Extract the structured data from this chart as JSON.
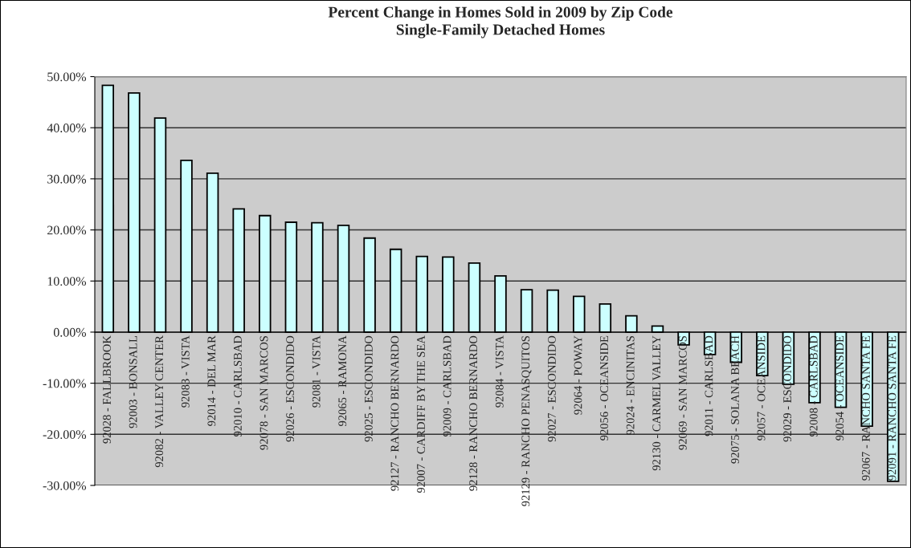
{
  "chart_data": {
    "type": "bar",
    "title": "Percent Change in Homes Sold in 2009 by Zip Code\nSingle-Family Detached Homes",
    "categories": [
      "92028 - FALLBROOK",
      "92003 - BONSALL",
      "92082 - VALLEY CENTER",
      "92083 - VISTA",
      "92014 - DEL MAR",
      "92010 - CARLSBAD",
      "92078 - SAN MARCOS",
      "92026 - ESCONDIDO",
      "92081 - VISTA",
      "92065 - RAMONA",
      "92025 - ESCONDIDO",
      "92127 - RANCHO BERNARDO",
      "92007 - CARDIFF BY THE SEA",
      "92009 - CARLSBAD",
      "92128 - RANCHO BERNARDO",
      "92084 - VISTA",
      "92129 - RANCHO PENASQUITOS",
      "92027 - ESCONDIDO",
      "92064 - POWAY",
      "92056 - OCEANSIDE",
      "92024 - ENCINITAS",
      "92130 - CARMEL VALLEY",
      "92069 - SAN MARCOS",
      "92011 - CARLSBAD",
      "92075 - SOLANA BEACH",
      "92057 - OCEANSIDE",
      "92029 - ESCONDIDO",
      "92008 - CARLSBAD",
      "92054 - OCEANSIDE",
      "92067 - RANCHO SANTA FE",
      "92091 - RANCHO SANTA FE"
    ],
    "values": [
      48.3,
      46.8,
      41.9,
      33.6,
      31.1,
      24.1,
      22.8,
      21.5,
      21.4,
      20.9,
      18.4,
      16.2,
      14.8,
      14.7,
      13.5,
      11.0,
      8.3,
      8.2,
      7.0,
      5.5,
      3.2,
      1.2,
      -2.5,
      -4.4,
      -5.9,
      -8.5,
      -10.2,
      -13.8,
      -14.7,
      -18.4,
      -29.2
    ],
    "color": "#ccffff",
    "ylim": [
      -30,
      50
    ],
    "yticks": [
      {
        "value": -30,
        "label": "-30.00%"
      },
      {
        "value": -20,
        "label": "-20.00%"
      },
      {
        "value": -10,
        "label": "-10.00%"
      },
      {
        "value": 0,
        "label": "0.00%"
      },
      {
        "value": 10,
        "label": "10.00%"
      },
      {
        "value": 20,
        "label": "20.00%"
      },
      {
        "value": 30,
        "label": "30.00%"
      },
      {
        "value": 40,
        "label": "40.00%"
      },
      {
        "value": 50,
        "label": "50.00%"
      }
    ],
    "grid": "y"
  }
}
